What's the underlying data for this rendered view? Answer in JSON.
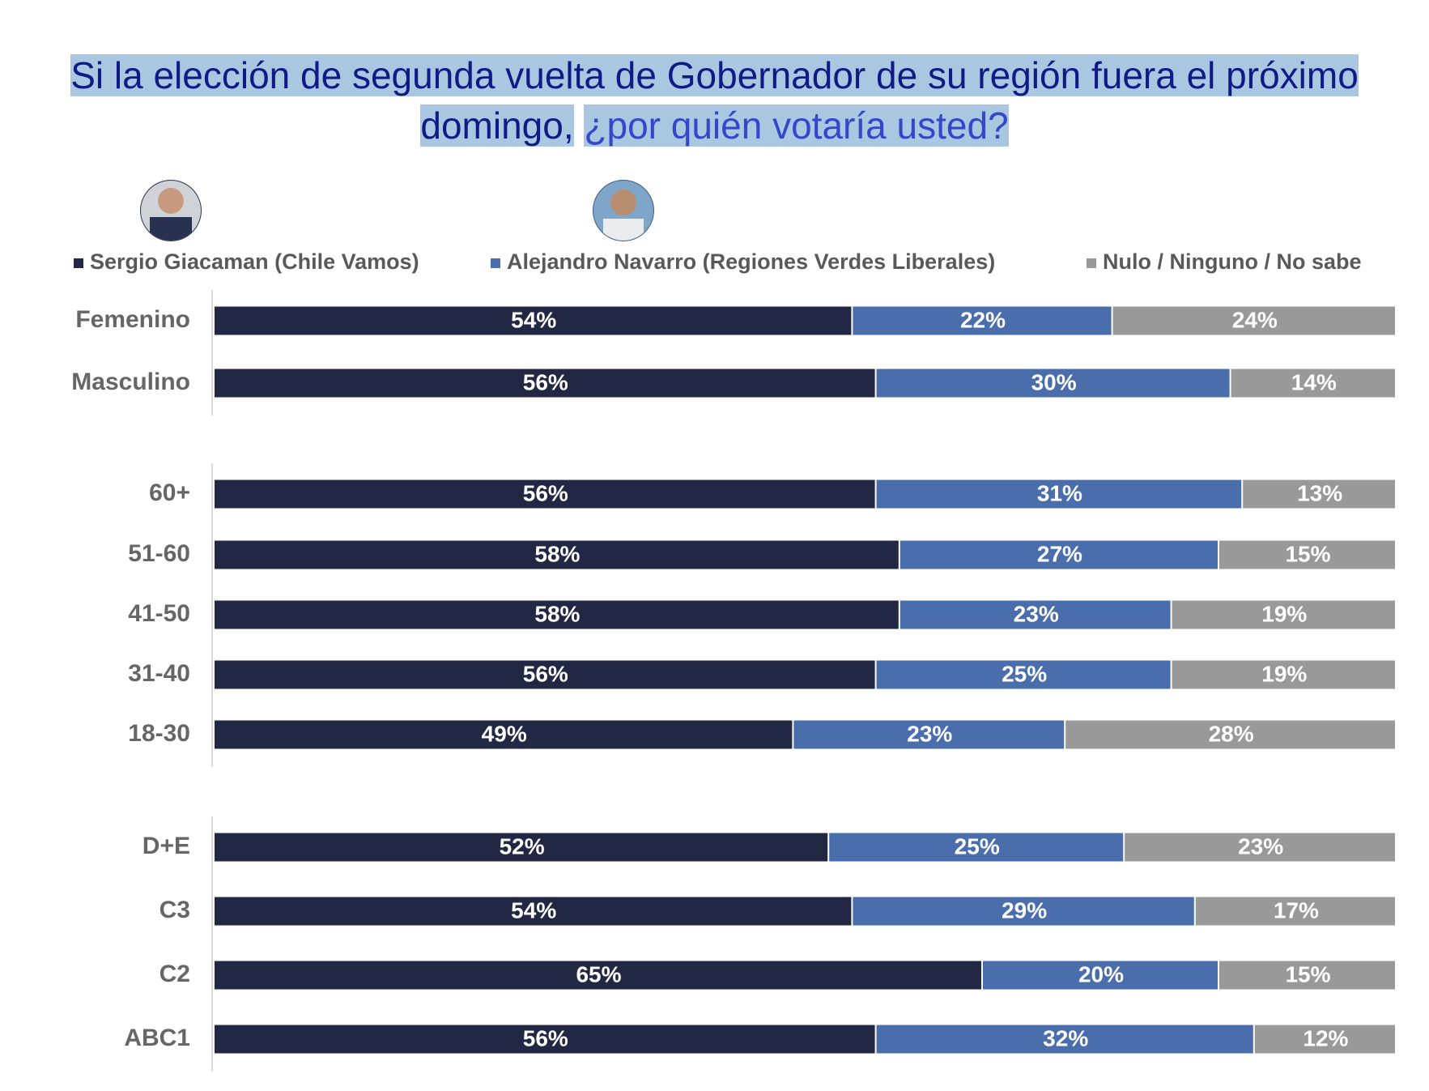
{
  "chart_data": {
    "type": "stacked-bar-horizontal",
    "title": "Si la elección de segunda vuelta de Gobernador de su región fuera el próximo domingo,",
    "title_question": "¿por quién votaría usted?",
    "categories": [
      "Femenino",
      "Masculino",
      "60+",
      "51-60",
      "41-50",
      "31-40",
      "18-30",
      "D+E",
      "C3",
      "C2",
      "ABC1"
    ],
    "xlim": [
      0,
      100
    ],
    "legend": "top",
    "series": [
      {
        "name": "Sergio Giacaman (Chile Vamos)",
        "color": "#222843",
        "values": [
          54,
          56,
          56,
          58,
          58,
          56,
          49,
          52,
          54,
          65,
          56
        ],
        "value_labels": [
          "54%",
          "56%",
          "56%",
          "58%",
          "58%",
          "56%",
          "49%",
          "52%",
          "54%",
          "65%",
          "56%"
        ]
      },
      {
        "name": "Alejandro Navarro (Regiones Verdes Liberales)",
        "color": "#4a6eab",
        "values": [
          22,
          30,
          31,
          27,
          23,
          25,
          23,
          25,
          29,
          20,
          32
        ],
        "value_labels": [
          "22%",
          "30%",
          "31%",
          "27%",
          "23%",
          "25%",
          "23%",
          "25%",
          "29%",
          "20%",
          "32%"
        ]
      },
      {
        "name": "Nulo / Ninguno / No sabe",
        "color": "#999999",
        "values": [
          24,
          14,
          13,
          15,
          19,
          19,
          28,
          23,
          17,
          15,
          12
        ],
        "value_labels": [
          "24%",
          "14%",
          "13%",
          "15%",
          "19%",
          "19%",
          "28%",
          "23%",
          "17%",
          "15%",
          "12%"
        ]
      }
    ]
  }
}
